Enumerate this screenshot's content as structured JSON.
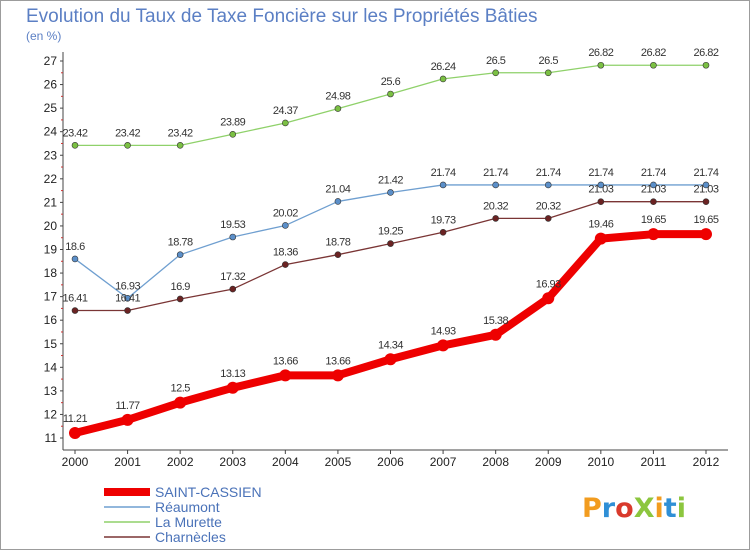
{
  "chart_data": {
    "type": "line",
    "title": "Evolution du Taux de Taxe Foncière sur les Propriétés Bâties",
    "subtitle": "(en %)",
    "xlabel": "",
    "ylabel": "",
    "x": [
      "2000",
      "2001",
      "2002",
      "2003",
      "2004",
      "2005",
      "2006",
      "2007",
      "2008",
      "2009",
      "2010",
      "2011",
      "2012"
    ],
    "ylim": [
      11,
      27
    ],
    "yticks": [
      "11",
      "12",
      "13",
      "14",
      "15",
      "16",
      "17",
      "18",
      "19",
      "20",
      "21",
      "22",
      "23",
      "24",
      "25",
      "26",
      "27"
    ],
    "grid": false,
    "legend_position": "bottom-left",
    "series": [
      {
        "name": "La Murette",
        "color": "#8fd16a",
        "marker": "#7bc043",
        "values": [
          23.42,
          23.42,
          23.42,
          23.89,
          24.37,
          24.98,
          25.6,
          26.24,
          26.5,
          26.5,
          26.82,
          26.82,
          26.82
        ],
        "labels": [
          "23.42",
          "23.42",
          "23.42",
          "23.89",
          "24.37",
          "24.98",
          "25.6",
          "26.24",
          "26.5",
          "26.5",
          "26.82",
          "26.82",
          "26.82"
        ]
      },
      {
        "name": "Réaumont",
        "color": "#6f9fd0",
        "marker": "#5b8fc9",
        "values": [
          18.6,
          16.93,
          18.78,
          19.53,
          20.02,
          21.04,
          21.42,
          21.74,
          21.74,
          21.74,
          21.74,
          21.74,
          21.74
        ],
        "labels": [
          "18.6",
          "16.93",
          "18.78",
          "19.53",
          "20.02",
          "21.04",
          "21.42",
          "21.74",
          "21.74",
          "21.74",
          "21.74",
          "21.74",
          "21.74"
        ]
      },
      {
        "name": "Charnècles",
        "color": "#7a3535",
        "marker": "#6b2323",
        "values": [
          16.41,
          16.41,
          16.9,
          17.32,
          18.36,
          18.78,
          19.25,
          19.73,
          20.32,
          20.32,
          21.03,
          21.03,
          21.03
        ],
        "labels": [
          "16.41",
          "16.41",
          "16.9",
          "17.32",
          "18.36",
          "18.78",
          "19.25",
          "19.73",
          "20.32",
          "20.32",
          "21.03",
          "21.03",
          "21.03"
        ]
      },
      {
        "name": "SAINT-CASSIEN",
        "color": "#ee0000",
        "marker": "#ee0000",
        "values": [
          11.21,
          11.77,
          12.5,
          13.13,
          13.66,
          13.66,
          14.34,
          14.93,
          15.38,
          16.93,
          19.46,
          19.65,
          19.65
        ],
        "labels": [
          "11.21",
          "11.77",
          "12.5",
          "13.13",
          "13.66",
          "13.66",
          "14.34",
          "14.93",
          "15.38",
          "16.93",
          "19.46",
          "19.65",
          "19.65"
        ]
      }
    ],
    "legend": [
      {
        "name": "SAINT-CASSIEN",
        "color": "#ee0000"
      },
      {
        "name": "Réaumont",
        "color": "#6f9fd0"
      },
      {
        "name": "La Murette",
        "color": "#8fd16a"
      },
      {
        "name": "Charnècles",
        "color": "#7a3535"
      }
    ]
  },
  "logo": {
    "text": "ProXiti",
    "colors": [
      "#f29c1f",
      "#2f8fd6",
      "#d93a2c",
      "#8cc63e",
      "#f29c1f",
      "#2f8fd6",
      "#8cc63e"
    ]
  }
}
